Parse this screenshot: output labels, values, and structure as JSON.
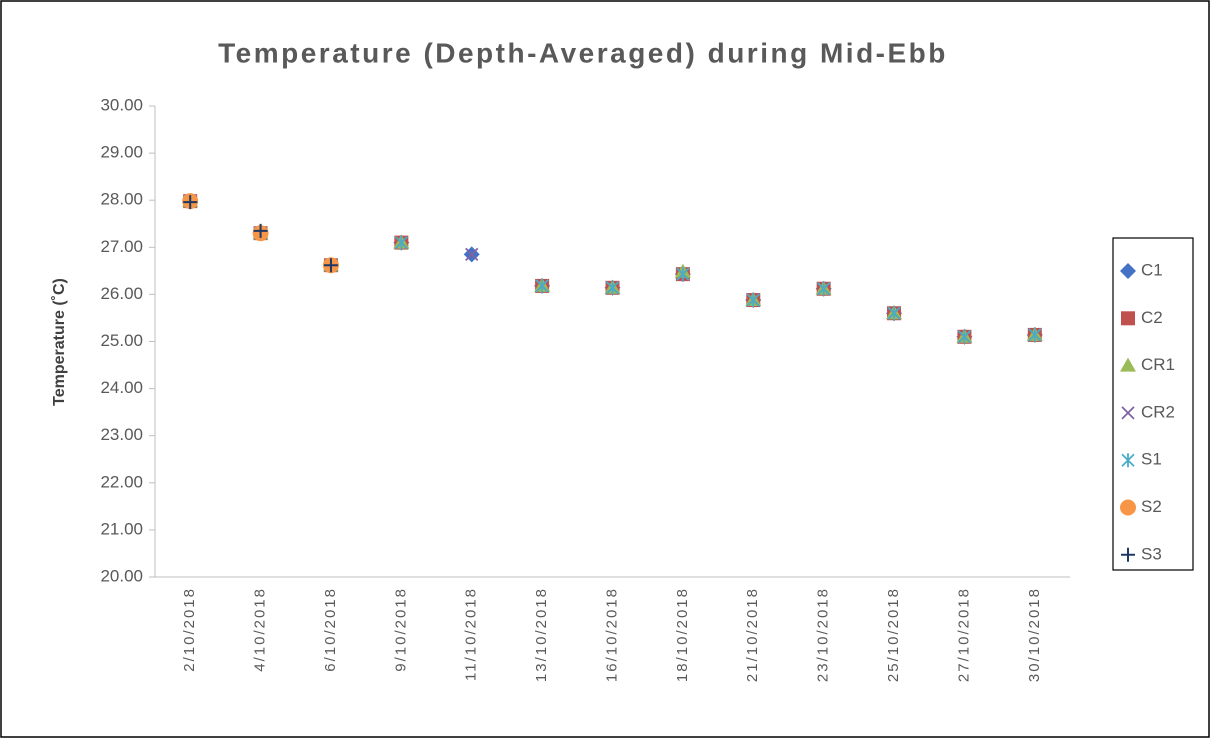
{
  "chart_data": {
    "type": "line",
    "lines": false,
    "title": "Temperature (Depth-Averaged) during Mid-Ebb",
    "y_label": "Temperature (˚C)",
    "categories": [
      "2/10/2018",
      "4/10/2018",
      "6/10/2018",
      "9/10/2018",
      "11/10/2018",
      "13/10/2018",
      "16/10/2018",
      "18/10/2018",
      "21/10/2018",
      "23/10/2018",
      "25/10/2018",
      "27/10/2018",
      "30/10/2018"
    ],
    "series": [
      {
        "name": "C1",
        "color": "#4472c4",
        "marker": "diamond",
        "values": [
          27.98,
          27.3,
          26.62,
          27.1,
          26.85,
          26.18,
          26.14,
          26.43,
          25.88,
          26.12,
          25.6,
          25.1,
          25.14
        ]
      },
      {
        "name": "C2",
        "color": "#c0504d",
        "marker": "square",
        "values": [
          27.98,
          27.3,
          26.62,
          27.1,
          null,
          26.18,
          26.14,
          26.43,
          25.88,
          26.12,
          25.6,
          25.1,
          25.14
        ]
      },
      {
        "name": "CR1",
        "color": "#9bbb59",
        "marker": "triangle",
        "values": [
          27.98,
          27.3,
          26.62,
          27.1,
          null,
          26.18,
          26.14,
          26.48,
          25.88,
          26.12,
          25.6,
          25.1,
          25.14
        ]
      },
      {
        "name": "CR2",
        "color": "#8064a2",
        "marker": "x",
        "values": [
          27.98,
          27.3,
          26.62,
          27.1,
          26.85,
          26.18,
          26.14,
          26.43,
          25.88,
          26.12,
          25.6,
          25.1,
          25.14
        ]
      },
      {
        "name": "S1",
        "color": "#4bacc6",
        "marker": "star",
        "values": [
          27.98,
          27.3,
          26.62,
          27.1,
          null,
          26.18,
          26.14,
          26.43,
          25.88,
          26.12,
          25.6,
          25.1,
          25.14
        ]
      },
      {
        "name": "S2",
        "color": "#f79646",
        "marker": "circle",
        "values": [
          27.98,
          27.3,
          26.62,
          null,
          null,
          null,
          null,
          null,
          null,
          null,
          null,
          null,
          null
        ]
      },
      {
        "name": "S3",
        "color": "#1f3864",
        "marker": "plus",
        "values": [
          27.96,
          27.35,
          26.62,
          null,
          null,
          null,
          null,
          null,
          null,
          null,
          null,
          null,
          null
        ]
      }
    ],
    "ylim": [
      20,
      30
    ],
    "yticks": [
      {
        "value": 20,
        "label": "20.00"
      },
      {
        "value": 21,
        "label": "21.00"
      },
      {
        "value": 22,
        "label": "22.00"
      },
      {
        "value": 23,
        "label": "23.00"
      },
      {
        "value": 24,
        "label": "24.00"
      },
      {
        "value": 25,
        "label": "25.00"
      },
      {
        "value": 26,
        "label": "26.00"
      },
      {
        "value": 27,
        "label": "27.00"
      },
      {
        "value": 28,
        "label": "28.00"
      },
      {
        "value": 29,
        "label": "29.00"
      },
      {
        "value": 30,
        "label": "30.00"
      }
    ],
    "grid": false,
    "legend": "right"
  }
}
